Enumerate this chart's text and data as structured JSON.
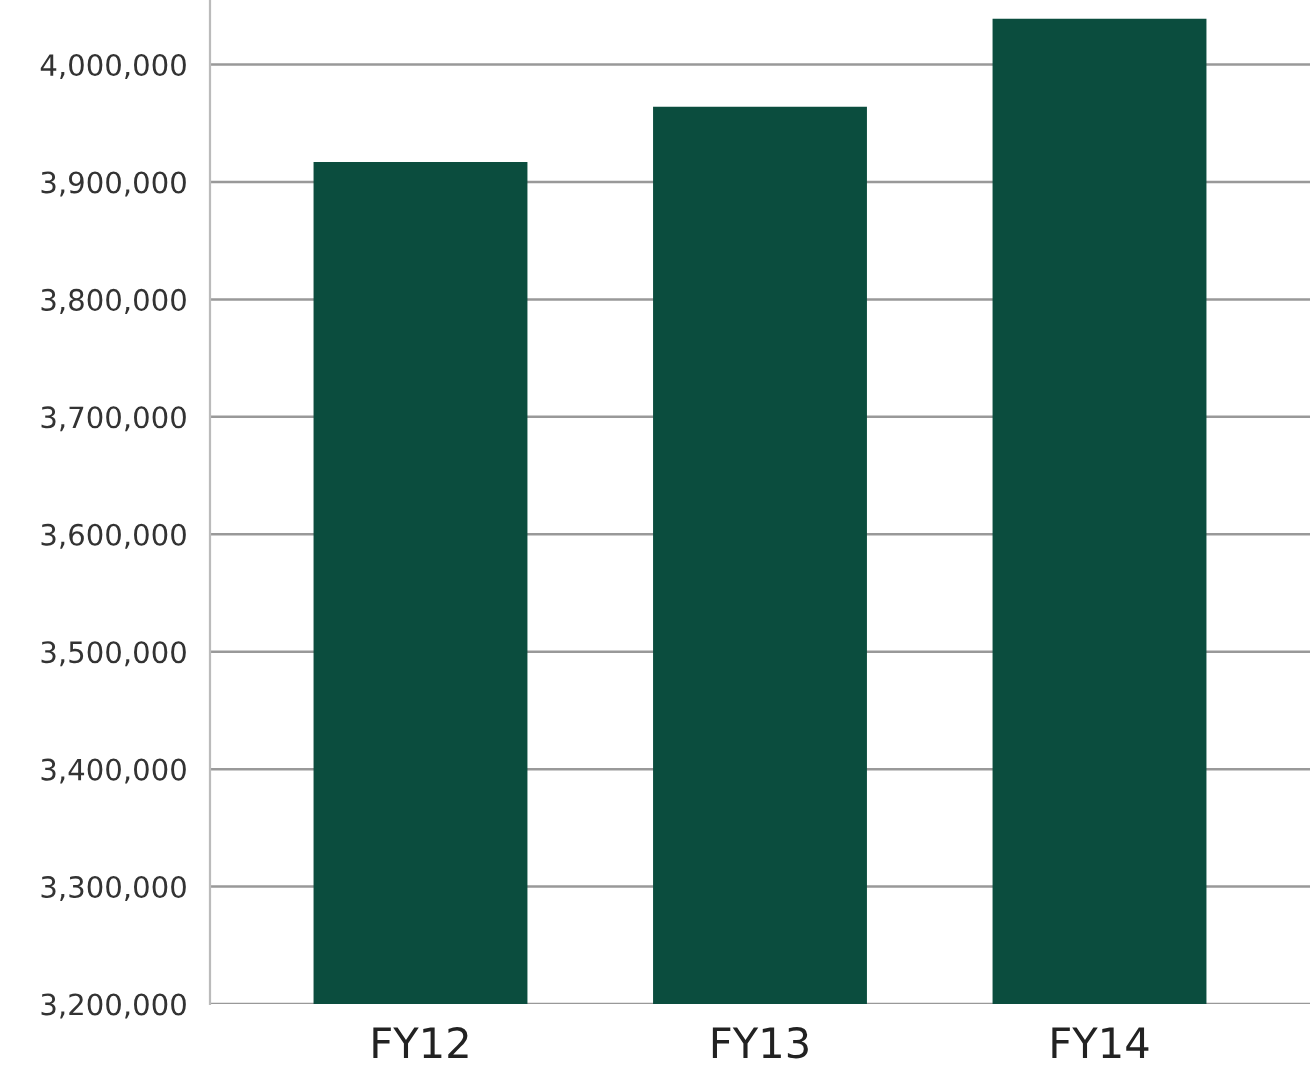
{
  "chart_data": {
    "type": "bar",
    "categories": [
      "FY12",
      "FY13",
      "FY14"
    ],
    "values": [
      3917000,
      3964000,
      4039000
    ],
    "color": "#0b4d3e",
    "ylim": [
      3200000,
      4055000
    ],
    "yticks": [
      {
        "value": 3200000,
        "label": "3,200,000"
      },
      {
        "value": 3300000,
        "label": "3,300,000"
      },
      {
        "value": 3400000,
        "label": "3,400,000"
      },
      {
        "value": 3500000,
        "label": "3,500,000"
      },
      {
        "value": 3600000,
        "label": "3,600,000"
      },
      {
        "value": 3700000,
        "label": "3,700,000"
      },
      {
        "value": 3800000,
        "label": "3,800,000"
      },
      {
        "value": 3900000,
        "label": "3,900,000"
      },
      {
        "value": 4000000,
        "label": "4,000,000"
      }
    ],
    "grid": "y"
  }
}
